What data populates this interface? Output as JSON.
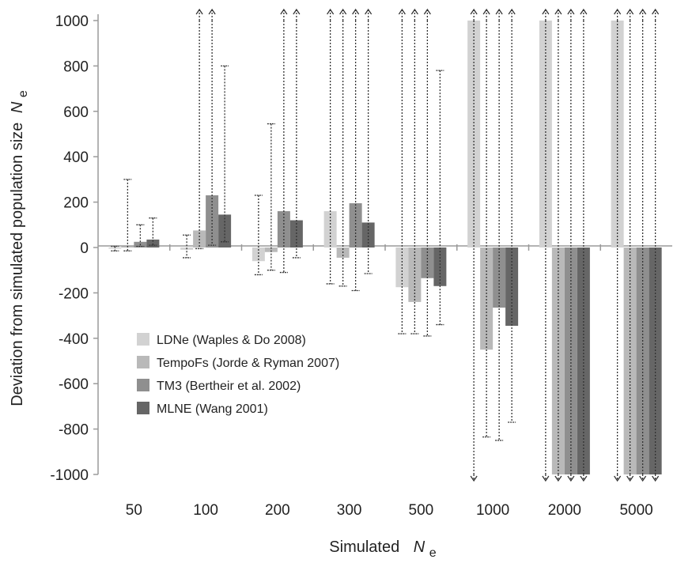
{
  "chart_data": {
    "type": "bar",
    "title": "",
    "xlabel": {
      "main": "Simulated",
      "symbol": "N",
      "subscript": "e"
    },
    "ylabel": {
      "main": "Deviation from simulated population size",
      "symbol": "N",
      "subscript": "e"
    },
    "ylim": [
      -1000,
      1000
    ],
    "yticks": [
      1000,
      800,
      600,
      400,
      200,
      0,
      -200,
      -400,
      -600,
      -800,
      -1000
    ],
    "ytick_labels": [
      "1000",
      "800",
      "600",
      "400",
      "200",
      "0",
      "-200",
      "-400",
      "-600",
      "-800",
      "-1000"
    ],
    "categories": [
      "50",
      "100",
      "200",
      "300",
      "500",
      "1000",
      "2000",
      "5000"
    ],
    "legend_position": "lower-left",
    "grid": false,
    "series": [
      {
        "name": "LDNe (Waples & Do 2008)",
        "color": "#d2d2d2",
        "values": [
          -5,
          -10,
          -60,
          160,
          -175,
          1030,
          1030,
          1030
        ],
        "ci_low": [
          -15,
          -45,
          -120,
          -160,
          -380,
          -1030,
          -1030,
          -1030
        ],
        "ci_high": [
          5,
          55,
          230,
          1030,
          1030,
          1030,
          1030,
          1030
        ]
      },
      {
        "name": "TempoFs (Jorde & Ryman 2007)",
        "color": "#b9b9b9",
        "values": [
          5,
          75,
          -20,
          -45,
          -240,
          -450,
          -1030,
          -1030
        ],
        "ci_low": [
          -15,
          -5,
          -100,
          -170,
          -380,
          -835,
          -1030,
          -1030
        ],
        "ci_high": [
          300,
          1030,
          545,
          1030,
          1030,
          1030,
          1030,
          1030
        ]
      },
      {
        "name": "TM3 (Bertheir et al. 2002)",
        "color": "#8f8f8f",
        "values": [
          25,
          230,
          160,
          195,
          -135,
          -265,
          -1030,
          -1030
        ],
        "ci_low": [
          5,
          10,
          -110,
          -190,
          -390,
          -850,
          -1030,
          -1030
        ],
        "ci_high": [
          100,
          1030,
          1030,
          1030,
          1030,
          1030,
          1030,
          1030
        ]
      },
      {
        "name": "MLNE (Wang 2001)",
        "color": "#666666",
        "values": [
          35,
          145,
          120,
          110,
          -170,
          -345,
          -1030,
          -1030
        ],
        "ci_low": [
          10,
          25,
          -45,
          -115,
          -340,
          -770,
          -1030,
          -1030
        ],
        "ci_high": [
          130,
          800,
          1030,
          1030,
          780,
          1030,
          1030,
          1030
        ]
      }
    ]
  }
}
